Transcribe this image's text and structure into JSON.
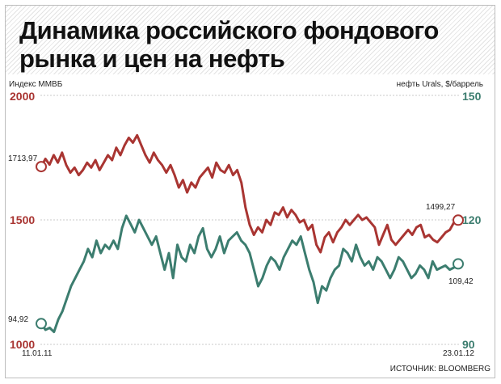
{
  "header": {
    "title_lines": [
      "Динамика российского фондового",
      "рынка и цен на нефть"
    ]
  },
  "source": "ИСТОЧНИК: BLOOMBERG",
  "colors": {
    "index": "#a93532",
    "oil": "#3c7d6f",
    "grid": "#c8c8c8"
  },
  "chart_data": {
    "type": "line",
    "x_start_label": "11.01.11",
    "x_end_label": "23.01.12",
    "grid": true,
    "left_axis": {
      "label": "Индекс ММВБ",
      "ylim": [
        1000,
        2000
      ],
      "ticks": [
        "2000",
        "1500",
        "1000"
      ]
    },
    "right_axis": {
      "label": "нефть Urals, $/баррель",
      "ylim": [
        90,
        150
      ],
      "ticks": [
        "150",
        "120",
        "90"
      ]
    },
    "series": [
      {
        "axis": "left",
        "start_label": "1713,97",
        "end_label": "1499,27",
        "values": [
          1714,
          1745,
          1722,
          1760,
          1730,
          1770,
          1720,
          1690,
          1710,
          1680,
          1700,
          1730,
          1710,
          1740,
          1700,
          1730,
          1760,
          1740,
          1790,
          1760,
          1800,
          1830,
          1810,
          1840,
          1800,
          1760,
          1730,
          1770,
          1740,
          1720,
          1690,
          1720,
          1680,
          1630,
          1660,
          1610,
          1650,
          1630,
          1670,
          1690,
          1710,
          1670,
          1730,
          1700,
          1690,
          1720,
          1680,
          1700,
          1650,
          1550,
          1480,
          1440,
          1470,
          1450,
          1500,
          1480,
          1530,
          1520,
          1550,
          1510,
          1540,
          1520,
          1490,
          1500,
          1460,
          1480,
          1400,
          1370,
          1430,
          1450,
          1410,
          1450,
          1470,
          1500,
          1480,
          1500,
          1520,
          1500,
          1510,
          1490,
          1470,
          1400,
          1440,
          1480,
          1420,
          1400,
          1420,
          1440,
          1460,
          1440,
          1470,
          1480,
          1430,
          1440,
          1420,
          1410,
          1430,
          1450,
          1460,
          1490,
          1499
        ]
      },
      {
        "axis": "right",
        "start_label": "94,92",
        "end_label": "109,42",
        "values": [
          95,
          93.5,
          94,
          93,
          96,
          98,
          101,
          104,
          106,
          108,
          110,
          113,
          111,
          115,
          112,
          114,
          113,
          115,
          113,
          118,
          121,
          119,
          117,
          120,
          118,
          116,
          114,
          116,
          112,
          108,
          112,
          106,
          114,
          111,
          110,
          114,
          112,
          116,
          118,
          113,
          111,
          113,
          116,
          112,
          115,
          116,
          117,
          115,
          114,
          112,
          108,
          104,
          106,
          109,
          111,
          110,
          108,
          111,
          113,
          115,
          114,
          116,
          112,
          108,
          105,
          100,
          104,
          103,
          106,
          108,
          109,
          113,
          112,
          110,
          114,
          111,
          109,
          110,
          108,
          111,
          110,
          108,
          106,
          108,
          111,
          110,
          108,
          106,
          107,
          109,
          108,
          106,
          110,
          108,
          108.5,
          109,
          108,
          108.5,
          109.4
        ]
      }
    ]
  }
}
